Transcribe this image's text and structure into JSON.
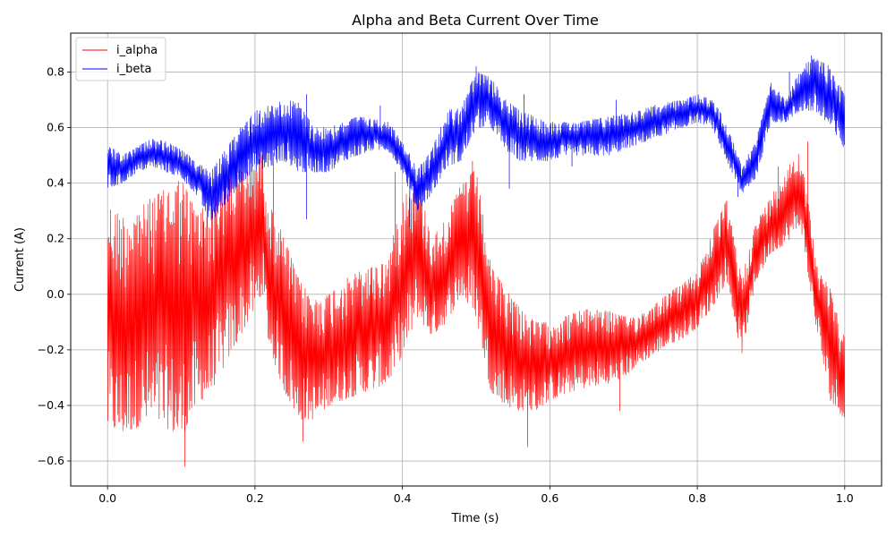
{
  "chart_data": {
    "type": "line",
    "title": "Alpha and Beta Current Over Time",
    "xlabel": "Time (s)",
    "ylabel": "Current (A)",
    "xlim": [
      -0.05,
      1.05
    ],
    "ylim": [
      -0.69,
      0.94
    ],
    "xticks": [
      0.0,
      0.2,
      0.4,
      0.6,
      0.8,
      1.0
    ],
    "xtick_labels": [
      "0.0",
      "0.2",
      "0.4",
      "0.6",
      "0.8",
      "1.0"
    ],
    "yticks": [
      -0.6,
      -0.4,
      -0.2,
      0.0,
      0.2,
      0.4,
      0.6,
      0.8
    ],
    "ytick_labels": [
      "−0.6",
      "−0.4",
      "−0.2",
      "0.0",
      "0.2",
      "0.4",
      "0.6",
      "0.8"
    ],
    "grid": true,
    "legend_position": "upper-left",
    "series": [
      {
        "name": "i_alpha",
        "color": "#ff0000",
        "x": [
          0.0,
          0.02,
          0.04,
          0.06,
          0.08,
          0.1,
          0.12,
          0.14,
          0.16,
          0.18,
          0.2,
          0.21,
          0.22,
          0.24,
          0.26,
          0.28,
          0.3,
          0.32,
          0.34,
          0.36,
          0.38,
          0.4,
          0.42,
          0.44,
          0.46,
          0.48,
          0.5,
          0.52,
          0.54,
          0.56,
          0.58,
          0.6,
          0.62,
          0.64,
          0.66,
          0.68,
          0.7,
          0.72,
          0.74,
          0.76,
          0.78,
          0.8,
          0.82,
          0.84,
          0.86,
          0.88,
          0.9,
          0.92,
          0.94,
          0.96,
          0.98,
          1.0
        ],
        "upper": [
          0.32,
          0.28,
          0.3,
          0.35,
          0.38,
          0.42,
          0.3,
          0.33,
          0.42,
          0.45,
          0.48,
          0.52,
          0.32,
          0.2,
          0.05,
          -0.02,
          0.0,
          0.05,
          0.08,
          0.1,
          0.12,
          0.35,
          0.42,
          0.2,
          0.28,
          0.4,
          0.45,
          0.1,
          0.02,
          -0.05,
          -0.1,
          -0.1,
          -0.08,
          -0.06,
          -0.05,
          -0.06,
          -0.08,
          -0.08,
          -0.04,
          0.0,
          0.04,
          0.08,
          0.22,
          0.34,
          0.06,
          0.26,
          0.35,
          0.45,
          0.52,
          0.15,
          0.02,
          -0.15
        ],
        "lower": [
          -0.48,
          -0.5,
          -0.48,
          -0.45,
          -0.48,
          -0.52,
          -0.4,
          -0.35,
          -0.25,
          -0.15,
          -0.05,
          0.0,
          -0.2,
          -0.35,
          -0.45,
          -0.45,
          -0.4,
          -0.38,
          -0.36,
          -0.34,
          -0.32,
          -0.22,
          -0.08,
          -0.15,
          -0.1,
          0.0,
          -0.08,
          -0.35,
          -0.4,
          -0.42,
          -0.42,
          -0.38,
          -0.36,
          -0.34,
          -0.33,
          -0.32,
          -0.3,
          -0.25,
          -0.22,
          -0.18,
          -0.16,
          -0.12,
          -0.05,
          0.05,
          -0.22,
          0.05,
          0.15,
          0.18,
          0.25,
          -0.1,
          -0.38,
          -0.45
        ],
        "spikes": [
          [
            0.105,
            -0.62
          ],
          [
            0.13,
            0.26
          ],
          [
            0.225,
            0.51
          ],
          [
            0.265,
            -0.53
          ],
          [
            0.39,
            0.44
          ],
          [
            0.495,
            0.48
          ],
          [
            0.57,
            -0.55
          ],
          [
            0.695,
            -0.42
          ],
          [
            0.91,
            0.46
          ],
          [
            0.95,
            0.55
          ]
        ]
      },
      {
        "name": "i_beta",
        "color": "#0000ff",
        "x": [
          0.0,
          0.02,
          0.04,
          0.06,
          0.08,
          0.1,
          0.12,
          0.14,
          0.16,
          0.18,
          0.2,
          0.22,
          0.24,
          0.26,
          0.28,
          0.3,
          0.32,
          0.34,
          0.36,
          0.38,
          0.4,
          0.42,
          0.44,
          0.46,
          0.48,
          0.5,
          0.52,
          0.54,
          0.56,
          0.58,
          0.6,
          0.62,
          0.64,
          0.66,
          0.68,
          0.7,
          0.72,
          0.74,
          0.76,
          0.78,
          0.8,
          0.82,
          0.84,
          0.86,
          0.88,
          0.9,
          0.92,
          0.94,
          0.96,
          0.98,
          1.0
        ],
        "upper": [
          0.54,
          0.5,
          0.53,
          0.56,
          0.55,
          0.52,
          0.48,
          0.44,
          0.52,
          0.6,
          0.66,
          0.68,
          0.7,
          0.69,
          0.6,
          0.6,
          0.62,
          0.64,
          0.63,
          0.62,
          0.56,
          0.45,
          0.52,
          0.66,
          0.68,
          0.8,
          0.78,
          0.7,
          0.66,
          0.64,
          0.62,
          0.62,
          0.62,
          0.63,
          0.64,
          0.65,
          0.66,
          0.68,
          0.69,
          0.7,
          0.72,
          0.7,
          0.62,
          0.46,
          0.56,
          0.76,
          0.7,
          0.82,
          0.85,
          0.82,
          0.72
        ],
        "lower": [
          0.38,
          0.4,
          0.44,
          0.46,
          0.44,
          0.42,
          0.36,
          0.26,
          0.32,
          0.4,
          0.44,
          0.46,
          0.48,
          0.44,
          0.44,
          0.44,
          0.48,
          0.5,
          0.52,
          0.52,
          0.44,
          0.3,
          0.36,
          0.46,
          0.48,
          0.6,
          0.6,
          0.52,
          0.48,
          0.48,
          0.48,
          0.5,
          0.5,
          0.5,
          0.5,
          0.52,
          0.54,
          0.56,
          0.58,
          0.6,
          0.62,
          0.6,
          0.48,
          0.36,
          0.42,
          0.62,
          0.62,
          0.66,
          0.66,
          0.6,
          0.52
        ],
        "spikes": [
          [
            0.135,
            0.24
          ],
          [
            0.27,
            0.72
          ],
          [
            0.27,
            0.27
          ],
          [
            0.37,
            0.68
          ],
          [
            0.41,
            0.24
          ],
          [
            0.5,
            0.82
          ],
          [
            0.545,
            0.38
          ],
          [
            0.565,
            0.72
          ],
          [
            0.63,
            0.46
          ],
          [
            0.69,
            0.7
          ],
          [
            0.855,
            0.35
          ],
          [
            0.925,
            0.8
          ],
          [
            0.955,
            0.86
          ]
        ]
      }
    ]
  }
}
